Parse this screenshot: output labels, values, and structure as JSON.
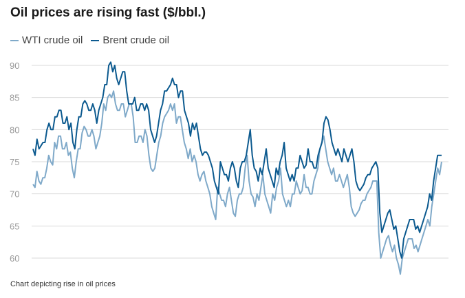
{
  "title": "Oil prices are rising fast ($/bbl.)",
  "caption": "Chart depicting rise in oil prices",
  "colors": {
    "wti": "#7fa9c9",
    "brent": "#0c5a8f",
    "grid": "#d9d9d9",
    "tick": "#9a9a9a"
  },
  "chart_data": {
    "type": "line",
    "title": "Oil prices are rising fast ($/bbl.)",
    "xlabel": "",
    "ylabel": "",
    "ylim": [
      58,
      92
    ],
    "yticks": [
      60,
      65,
      70,
      75,
      80,
      85,
      90
    ],
    "grid": true,
    "legend": "top-left",
    "series": [
      {
        "name": "WTI crude oil",
        "values": [
          71.5,
          71,
          73.5,
          72,
          71.5,
          72.5,
          72.5,
          74,
          76,
          75,
          74.5,
          78,
          77,
          79,
          79,
          77,
          77,
          78,
          76,
          76.5,
          74,
          72.5,
          75,
          77,
          77,
          79.5,
          80.5,
          80,
          79,
          79,
          80,
          79,
          77,
          78,
          79,
          81,
          84,
          83,
          85,
          85.5,
          85,
          86,
          84,
          83,
          83,
          84,
          84,
          82,
          83,
          84,
          84,
          82,
          78,
          78,
          79,
          79,
          78,
          80,
          79,
          76,
          74,
          73.5,
          74,
          76,
          78,
          79,
          81,
          82,
          82.5,
          83,
          84,
          83,
          84,
          81,
          82,
          82,
          80,
          78,
          77,
          75.5,
          77,
          75,
          76,
          75,
          73,
          72,
          73,
          73.5,
          72,
          71,
          70,
          68,
          67,
          66,
          71,
          70,
          69,
          69,
          68,
          70,
          71,
          69,
          67,
          66.5,
          69,
          70,
          70,
          71,
          74,
          76,
          72,
          70,
          69.5,
          68,
          70,
          69,
          71,
          73,
          70,
          69,
          68,
          67,
          70,
          69,
          71,
          72,
          74,
          70,
          69,
          68,
          69,
          68,
          70,
          70,
          72,
          71,
          70,
          70.5,
          73,
          71,
          71,
          70,
          70,
          72,
          73,
          74,
          77,
          78,
          79,
          77,
          75,
          74,
          73,
          74,
          72,
          72,
          73,
          72,
          71,
          72,
          73,
          71,
          68,
          67,
          66.5,
          67,
          67.5,
          68.5,
          69,
          69,
          70,
          70.5,
          71,
          72,
          72,
          72,
          64,
          60,
          61,
          62,
          63,
          63.5,
          62,
          61,
          62,
          60,
          59,
          57.5,
          60,
          61,
          62,
          63,
          63,
          63,
          61.5,
          62,
          61,
          62,
          63,
          64,
          65,
          66,
          65,
          68,
          70,
          72,
          74,
          73,
          75
        ]
      },
      {
        "name": "Brent crude oil",
        "values": [
          77,
          76,
          78.5,
          77,
          77.5,
          78,
          78,
          80,
          81,
          80,
          80,
          82,
          82,
          83,
          83,
          81,
          81,
          82,
          80,
          81,
          78,
          77,
          80,
          82,
          82,
          84,
          84.5,
          84,
          83,
          83,
          84,
          83,
          81,
          83,
          84,
          85,
          87,
          87,
          90,
          90.5,
          89,
          90,
          88,
          87,
          88,
          89,
          89,
          86,
          84,
          84,
          84,
          85,
          83,
          83,
          84,
          84,
          83,
          84,
          83,
          80,
          79,
          78,
          79,
          81,
          83,
          84,
          86,
          86,
          86.5,
          87,
          88,
          87,
          87,
          85,
          86,
          86,
          83,
          82,
          81,
          79,
          81,
          80,
          81,
          79,
          77,
          76,
          76.5,
          76.5,
          76,
          75,
          74,
          72,
          71,
          70,
          75,
          74,
          73,
          73,
          72,
          74,
          75,
          74,
          72,
          71,
          74,
          75,
          75,
          76,
          78,
          80,
          76,
          74,
          73.5,
          72,
          74,
          73,
          75,
          77,
          74,
          73,
          72,
          71,
          74,
          73,
          75,
          76,
          78,
          74,
          73,
          72,
          73,
          72,
          74,
          74,
          76,
          75,
          74,
          74.5,
          77,
          75,
          75,
          74,
          74,
          76,
          77,
          78,
          81,
          82,
          81.5,
          80,
          78,
          77,
          76,
          77,
          76,
          75,
          77,
          76,
          75,
          76,
          77,
          75,
          72,
          71,
          70.5,
          71,
          71.5,
          72.5,
          73,
          73,
          74,
          74.5,
          75,
          74,
          67,
          64,
          65,
          66,
          67,
          67.5,
          66,
          64.5,
          65,
          63,
          61,
          60,
          63,
          64,
          65,
          66,
          66,
          66,
          64.5,
          65,
          64,
          65,
          66,
          67,
          68,
          70,
          69,
          72,
          74,
          76,
          76,
          76
        ]
      }
    ]
  }
}
